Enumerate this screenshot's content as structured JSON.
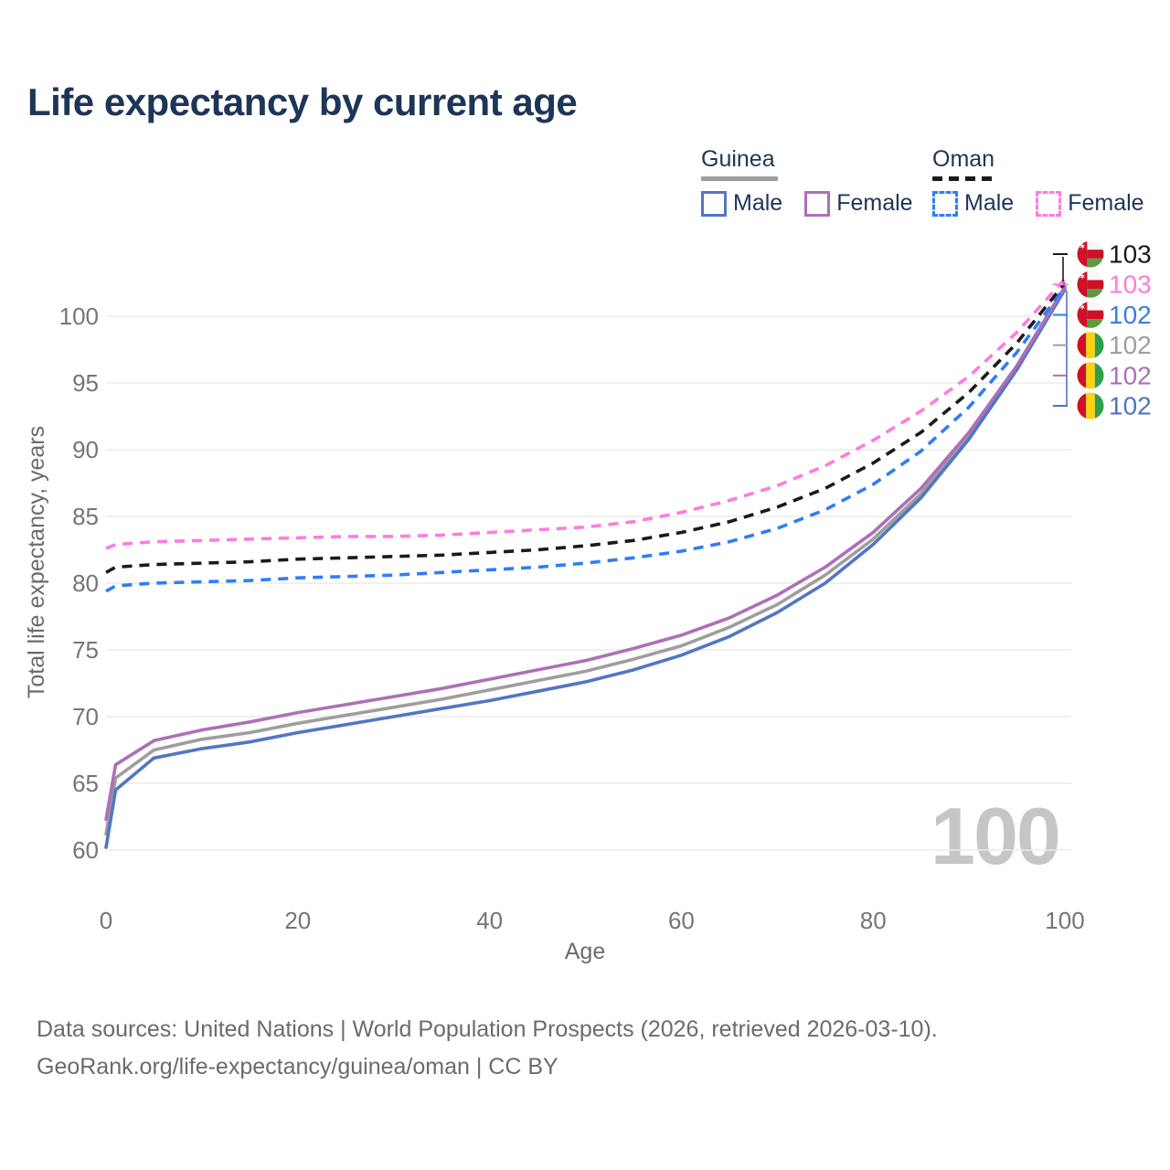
{
  "title": "Life expectancy by current age",
  "watermark": "100",
  "footer": {
    "line1": "Data sources: United Nations | World Population Prospects (2026, retrieved 2026-03-10).",
    "line2": "GeoRank.org/life-expectancy/guinea/oman | CC BY"
  },
  "legend": {
    "groups": [
      {
        "name": "Guinea",
        "line_style": "solid",
        "underline_color": "#9e9e9e",
        "items": [
          {
            "label": "Male",
            "color": "#5276c3",
            "dashed": false
          },
          {
            "label": "Female",
            "color": "#ae6fb8",
            "dashed": false
          }
        ]
      },
      {
        "name": "Oman",
        "line_style": "dashed",
        "underline_color": "#1a1a1a",
        "items": [
          {
            "label": "Male",
            "color": "#2f7df6",
            "dashed": true
          },
          {
            "label": "Female",
            "color": "#ff7bdf",
            "dashed": true
          }
        ]
      }
    ]
  },
  "chart_data": {
    "type": "line",
    "title": "Life expectancy by current age",
    "xlabel": "Age",
    "ylabel": "Total life expectancy, years",
    "xlim": [
      0,
      100
    ],
    "ylim": [
      58,
      104
    ],
    "xticks": [
      0,
      20,
      40,
      60,
      80,
      100
    ],
    "yticks": [
      60,
      65,
      70,
      75,
      80,
      85,
      90,
      95,
      100
    ],
    "grid": true,
    "legend_position": "top-right",
    "x": [
      0,
      1,
      5,
      10,
      15,
      20,
      25,
      30,
      35,
      40,
      45,
      50,
      55,
      60,
      65,
      70,
      75,
      80,
      85,
      90,
      95,
      100
    ],
    "series": [
      {
        "name": "Guinea Total",
        "country": "Guinea",
        "sex": "Total",
        "color": "#9e9e9e",
        "dashed": false,
        "values": [
          61.2,
          65.4,
          67.5,
          68.3,
          68.8,
          69.5,
          70.1,
          70.7,
          71.3,
          72.0,
          72.7,
          73.4,
          74.3,
          75.3,
          76.7,
          78.4,
          80.6,
          83.3,
          86.7,
          91.0,
          96.1,
          102.1
        ]
      },
      {
        "name": "Guinea Male",
        "country": "Guinea",
        "sex": "Male",
        "color": "#5276c3",
        "dashed": false,
        "values": [
          60.2,
          64.5,
          66.9,
          67.6,
          68.1,
          68.8,
          69.4,
          70.0,
          70.6,
          71.2,
          71.9,
          72.6,
          73.5,
          74.6,
          76.0,
          77.8,
          80.0,
          82.9,
          86.4,
          90.8,
          96.0,
          102.0
        ]
      },
      {
        "name": "Guinea Female",
        "country": "Guinea",
        "sex": "Female",
        "color": "#ae6fb8",
        "dashed": false,
        "values": [
          62.3,
          66.4,
          68.2,
          69.0,
          69.6,
          70.3,
          70.9,
          71.5,
          72.1,
          72.8,
          73.5,
          74.2,
          75.1,
          76.1,
          77.4,
          79.1,
          81.2,
          83.8,
          87.1,
          91.3,
          96.3,
          102.2
        ]
      },
      {
        "name": "Oman Male",
        "country": "Oman",
        "sex": "Male",
        "color": "#2f7df6",
        "dashed": true,
        "values": [
          79.4,
          79.8,
          80.0,
          80.1,
          80.2,
          80.4,
          80.5,
          80.6,
          80.8,
          81.0,
          81.2,
          81.5,
          81.9,
          82.4,
          83.1,
          84.1,
          85.5,
          87.4,
          89.9,
          93.2,
          97.3,
          102.2
        ]
      },
      {
        "name": "Oman Total",
        "country": "Oman",
        "sex": "Total",
        "color": "#1a1a1a",
        "dashed": true,
        "values": [
          80.8,
          81.2,
          81.4,
          81.5,
          81.6,
          81.8,
          81.9,
          82.0,
          82.1,
          82.3,
          82.5,
          82.8,
          83.2,
          83.8,
          84.6,
          85.7,
          87.1,
          89.0,
          91.3,
          94.3,
          98.0,
          102.5
        ]
      },
      {
        "name": "Oman Female",
        "country": "Oman",
        "sex": "Female",
        "color": "#ff7bdf",
        "dashed": true,
        "values": [
          82.6,
          82.9,
          83.1,
          83.2,
          83.3,
          83.4,
          83.5,
          83.5,
          83.6,
          83.8,
          84.0,
          84.2,
          84.6,
          85.3,
          86.2,
          87.3,
          88.8,
          90.7,
          92.9,
          95.5,
          98.8,
          102.8
        ]
      }
    ],
    "end_labels": [
      {
        "value": "103",
        "color": "#1a1a1a",
        "flag": "oman",
        "series": "Oman Total"
      },
      {
        "value": "103",
        "color": "#ff7bdf",
        "flag": "oman",
        "series": "Oman Female"
      },
      {
        "value": "102",
        "color": "#3b7de0",
        "flag": "oman",
        "series": "Oman Male"
      },
      {
        "value": "102",
        "color": "#9e9e9e",
        "flag": "guinea",
        "series": "Guinea Total"
      },
      {
        "value": "102",
        "color": "#ab6fb8",
        "flag": "guinea",
        "series": "Guinea Female"
      },
      {
        "value": "102",
        "color": "#4f74c2",
        "flag": "guinea",
        "series": "Guinea Male"
      }
    ],
    "flag_colors": {
      "red": "#ce1126",
      "yellow": "#fcd116",
      "guinea_green": "#2e9e4f",
      "oman_green": "#589c3f",
      "oman_white": "#f7f7f7"
    }
  }
}
